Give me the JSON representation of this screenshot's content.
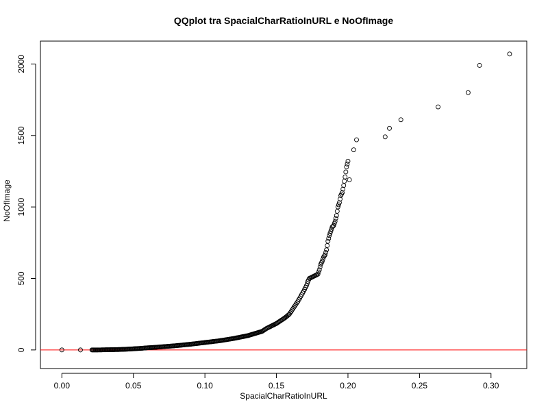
{
  "chart_data": {
    "type": "scatter",
    "title": "QQplot tra SpacialCharRatioInURL e NoOfImage",
    "xlabel": "SpacialCharRatioInURL",
    "ylabel": "NoOfImage",
    "xlim": [
      -0.015,
      0.325
    ],
    "ylim": [
      -130,
      2160
    ],
    "xticks": [
      0.0,
      0.05,
      0.1,
      0.15,
      0.2,
      0.25,
      0.3
    ],
    "xtick_labels": [
      "0.00",
      "0.05",
      "0.10",
      "0.15",
      "0.20",
      "0.25",
      "0.30"
    ],
    "yticks": [
      0,
      500,
      1000,
      1500,
      2000
    ],
    "ytick_labels": [
      "0",
      "500",
      "1000",
      "1500",
      "2000"
    ],
    "reference_line": {
      "type": "horizontal",
      "y": 0,
      "color": "#ff0000"
    },
    "grid": false,
    "legend": "none",
    "series": [
      {
        "marker": "open-circle",
        "color": "#000000",
        "x": [
          0.0,
          0.013,
          0.021,
          0.025,
          0.03,
          0.035,
          0.04,
          0.045,
          0.05,
          0.055,
          0.06,
          0.065,
          0.07,
          0.075,
          0.08,
          0.085,
          0.09,
          0.095,
          0.1,
          0.105,
          0.11,
          0.115,
          0.12,
          0.125,
          0.13,
          0.135,
          0.14,
          0.143,
          0.146,
          0.15,
          0.153,
          0.156,
          0.159,
          0.161,
          0.163,
          0.165,
          0.167,
          0.169,
          0.171,
          0.172,
          0.173,
          0.175,
          0.177,
          0.179,
          0.18,
          0.181,
          0.182,
          0.183,
          0.184,
          0.185,
          0.186,
          0.187,
          0.188,
          0.189,
          0.19,
          0.191,
          0.192,
          0.193,
          0.194,
          0.195,
          0.196,
          0.197,
          0.198,
          0.199,
          0.2,
          0.201,
          0.204,
          0.206,
          0.226,
          0.229,
          0.237,
          0.263,
          0.284,
          0.292,
          0.313
        ],
        "y": [
          0,
          0,
          0,
          0,
          1,
          2,
          3,
          5,
          8,
          11,
          15,
          18,
          22,
          26,
          30,
          35,
          40,
          46,
          52,
          58,
          64,
          72,
          80,
          90,
          100,
          115,
          130,
          150,
          165,
          185,
          205,
          225,
          250,
          280,
          310,
          340,
          375,
          410,
          450,
          480,
          500,
          510,
          520,
          530,
          560,
          600,
          620,
          650,
          665,
          700,
          760,
          800,
          830,
          860,
          870,
          900,
          940,
          1000,
          1030,
          1080,
          1100,
          1150,
          1210,
          1280,
          1320,
          1190,
          1400,
          1470,
          1490,
          1550,
          1610,
          1700,
          1800,
          1990,
          2070
        ]
      }
    ]
  }
}
